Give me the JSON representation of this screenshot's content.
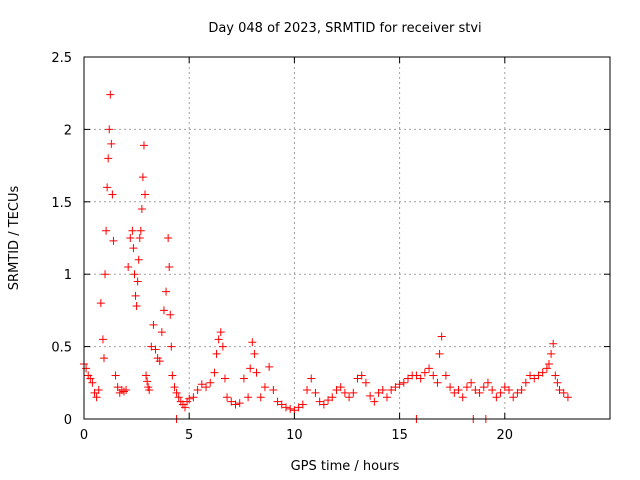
{
  "chart_data": {
    "type": "scatter",
    "title": "Day 048 of 2023, SRMTID for receiver stvi",
    "xlabel": "GPS time / hours",
    "ylabel": "SRMTID / TECUs",
    "xlim": [
      0,
      25
    ],
    "ylim": [
      0,
      2.5
    ],
    "xticks": [
      0,
      5,
      10,
      15,
      20
    ],
    "yticks": [
      0,
      0.5,
      1,
      1.5,
      2,
      2.5
    ],
    "xtick_labels": [
      "0",
      "5",
      "10",
      "15",
      "20"
    ],
    "ytick_labels": [
      "0",
      "0.5",
      "1",
      "1.5",
      "2",
      "2.5"
    ],
    "grid": true,
    "marker": "+",
    "series": [
      {
        "name": "SRMTID",
        "color": "#ff0000",
        "x": [
          0.0,
          0.1,
          0.2,
          0.3,
          0.4,
          0.5,
          0.6,
          0.7,
          0.8,
          0.9,
          0.95,
          1.0,
          1.05,
          1.1,
          1.15,
          1.2,
          1.25,
          1.3,
          1.35,
          1.4,
          1.5,
          1.6,
          1.7,
          1.8,
          1.9,
          2.0,
          2.1,
          2.2,
          2.3,
          2.35,
          2.4,
          2.45,
          2.5,
          2.55,
          2.6,
          2.65,
          2.7,
          2.75,
          2.8,
          2.85,
          2.9,
          2.95,
          3.0,
          3.05,
          3.1,
          3.2,
          3.3,
          3.4,
          3.5,
          3.6,
          3.7,
          3.8,
          3.9,
          4.0,
          4.05,
          4.1,
          4.15,
          4.2,
          4.3,
          4.4,
          4.5,
          4.6,
          4.7,
          4.8,
          4.9,
          5.0,
          5.2,
          5.4,
          5.6,
          5.8,
          6.0,
          6.2,
          6.3,
          6.4,
          6.5,
          6.6,
          6.7,
          6.8,
          7.0,
          7.2,
          7.4,
          7.6,
          7.8,
          7.9,
          8.0,
          8.1,
          8.2,
          8.4,
          8.6,
          8.8,
          9.0,
          9.2,
          9.4,
          9.6,
          9.8,
          10.0,
          10.2,
          10.4,
          10.6,
          10.8,
          11.0,
          11.2,
          11.4,
          11.6,
          11.8,
          12.0,
          12.2,
          12.4,
          12.6,
          12.8,
          13.0,
          13.2,
          13.4,
          13.6,
          13.8,
          14.0,
          14.2,
          14.4,
          14.6,
          14.8,
          15.0,
          15.2,
          15.4,
          15.6,
          15.8,
          16.0,
          16.2,
          16.4,
          16.6,
          16.8,
          16.9,
          17.0,
          17.2,
          17.4,
          17.6,
          17.8,
          18.0,
          18.2,
          18.4,
          18.6,
          18.8,
          19.0,
          19.2,
          19.4,
          19.6,
          19.8,
          20.0,
          20.2,
          20.4,
          20.6,
          20.8,
          21.0,
          21.2,
          21.4,
          21.6,
          21.8,
          22.0,
          22.1,
          22.2,
          22.3,
          22.4,
          22.5,
          22.6,
          22.8,
          23.0,
          4.4,
          15.8,
          18.5,
          19.1
        ],
        "y": [
          0.38,
          0.35,
          0.3,
          0.28,
          0.25,
          0.18,
          0.15,
          0.2,
          0.8,
          0.55,
          0.42,
          1.0,
          1.3,
          1.6,
          1.8,
          2.0,
          2.24,
          1.9,
          1.55,
          1.23,
          0.3,
          0.22,
          0.18,
          0.2,
          0.19,
          0.2,
          1.05,
          1.25,
          1.3,
          1.18,
          1.0,
          0.85,
          0.78,
          0.95,
          1.1,
          1.25,
          1.3,
          1.45,
          1.67,
          1.89,
          1.55,
          0.3,
          0.26,
          0.22,
          0.2,
          0.5,
          0.65,
          0.48,
          0.42,
          0.4,
          0.6,
          0.75,
          0.88,
          1.25,
          1.05,
          0.72,
          0.5,
          0.3,
          0.22,
          0.18,
          0.15,
          0.12,
          0.1,
          0.08,
          0.12,
          0.14,
          0.15,
          0.2,
          0.24,
          0.22,
          0.25,
          0.32,
          0.45,
          0.55,
          0.6,
          0.5,
          0.28,
          0.15,
          0.12,
          0.1,
          0.11,
          0.28,
          0.15,
          0.35,
          0.53,
          0.45,
          0.32,
          0.15,
          0.22,
          0.36,
          0.2,
          0.12,
          0.1,
          0.08,
          0.07,
          0.06,
          0.08,
          0.1,
          0.2,
          0.28,
          0.18,
          0.12,
          0.1,
          0.13,
          0.15,
          0.2,
          0.22,
          0.18,
          0.15,
          0.18,
          0.28,
          0.3,
          0.25,
          0.16,
          0.12,
          0.18,
          0.2,
          0.15,
          0.2,
          0.22,
          0.24,
          0.25,
          0.28,
          0.3,
          0.3,
          0.28,
          0.32,
          0.35,
          0.3,
          0.25,
          0.45,
          0.57,
          0.3,
          0.22,
          0.18,
          0.2,
          0.15,
          0.22,
          0.25,
          0.2,
          0.18,
          0.22,
          0.25,
          0.2,
          0.15,
          0.18,
          0.22,
          0.2,
          0.15,
          0.18,
          0.2,
          0.25,
          0.3,
          0.28,
          0.3,
          0.32,
          0.35,
          0.38,
          0.45,
          0.52,
          0.3,
          0.25,
          0.2,
          0.18,
          0.15,
          0.0,
          0.0,
          0.0,
          0.0
        ]
      }
    ]
  }
}
